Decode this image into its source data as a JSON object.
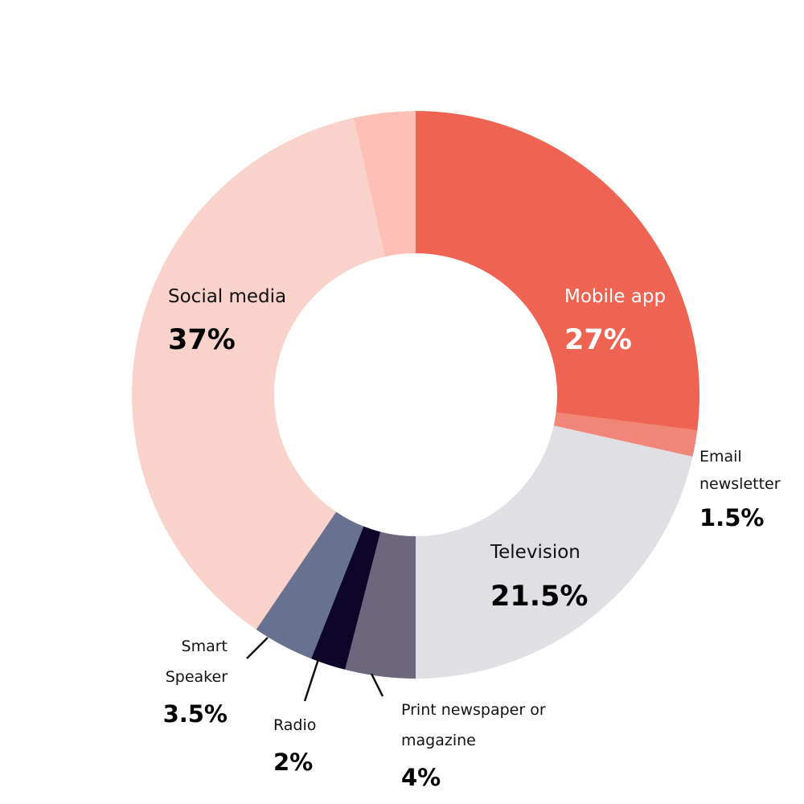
{
  "chart_data": {
    "type": "pie",
    "title": "",
    "slices": [
      {
        "label": "Mobile app",
        "value": 27,
        "value_label": "27%",
        "color": "#EE6352"
      },
      {
        "label": "Email newsletter",
        "value": 1.5,
        "value_label": "1.5%",
        "color": "#F08677"
      },
      {
        "label": "Television",
        "value": 21.5,
        "value_label": "21.5%",
        "color": "#DFDFE4"
      },
      {
        "label": "Print newspaper or magazine",
        "value": 4,
        "value_label": "4%",
        "color": "#6D677E"
      },
      {
        "label": "Radio",
        "value": 2,
        "value_label": "2%",
        "color": "#0E0628"
      },
      {
        "label": "Smart Speaker",
        "value": 3.5,
        "value_label": "3.5%",
        "color": "#68718F"
      },
      {
        "label": "Social media",
        "value": 37,
        "value_label": "37%",
        "color": "#FAD2CC"
      },
      {
        "label": "",
        "value": 3.5,
        "value_label": "",
        "color": "#FEC0B6"
      }
    ],
    "label_lines": {
      "email": [
        "Email",
        "newsletter"
      ],
      "print": [
        "Print newspaper or",
        "magazine"
      ],
      "smart": [
        "Smart",
        "Speaker"
      ]
    }
  }
}
